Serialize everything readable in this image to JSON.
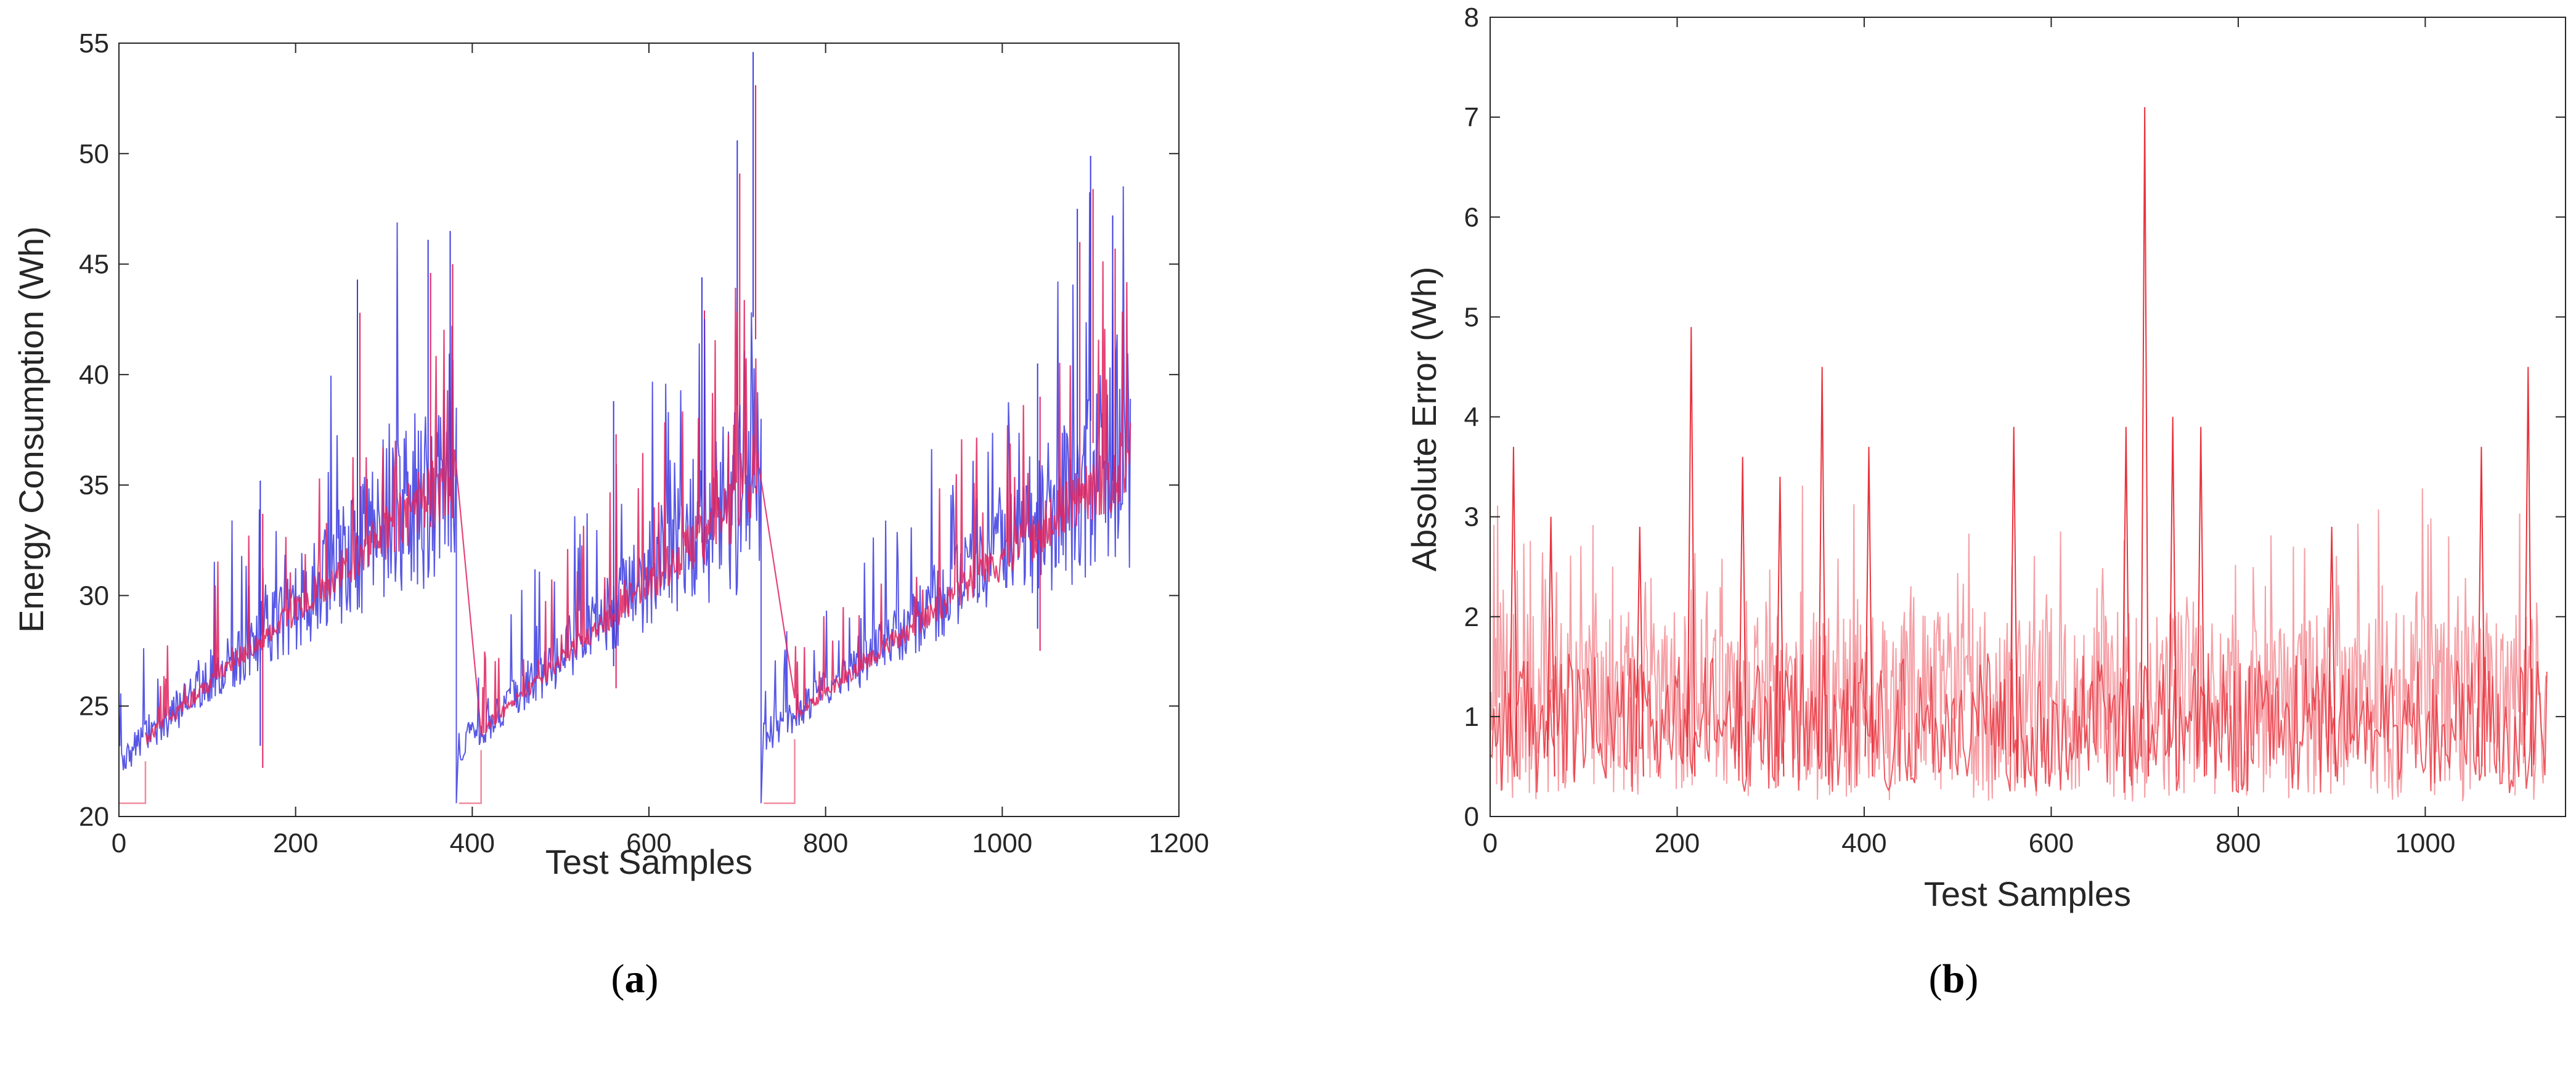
{
  "chart_data": [
    {
      "id": "a",
      "type": "line",
      "caption_letter": "a",
      "title": "",
      "xlabel": "Test Samples",
      "ylabel": "Energy Consumption (Wh)",
      "xlim": [
        0,
        1200
      ],
      "ylim": [
        20,
        55
      ],
      "xticks": [
        0,
        200,
        400,
        600,
        800,
        1000,
        1200
      ],
      "yticks": [
        20,
        25,
        30,
        35,
        40,
        45,
        50,
        55
      ],
      "colors": {
        "actual": "#3a3ae0",
        "predicted": "#e0245e",
        "predicted_light": "#f08aa0"
      },
      "segments": [
        {
          "start": 0,
          "end": 380,
          "start_level": 22.5,
          "end_level": 35.5,
          "flat_until": 30,
          "flat_value": 20.6
        },
        {
          "start": 385,
          "end": 725,
          "start_level": 23.0,
          "end_level": 35.0,
          "flat_until": 410,
          "flat_value": 20.6
        },
        {
          "start": 730,
          "end": 1145,
          "start_level": 23.5,
          "end_level": 36.0,
          "flat_until": 765,
          "flat_value": 20.6
        }
      ],
      "peaks": [
        {
          "x": 160,
          "y": 35.2
        },
        {
          "x": 270,
          "y": 44.3
        },
        {
          "x": 350,
          "y": 46.1
        },
        {
          "x": 375,
          "y": 46.5
        },
        {
          "x": 560,
          "y": 38.8
        },
        {
          "x": 660,
          "y": 44.4
        },
        {
          "x": 700,
          "y": 50.6
        },
        {
          "x": 718,
          "y": 54.6
        },
        {
          "x": 1040,
          "y": 40.5
        },
        {
          "x": 1085,
          "y": 47.5
        },
        {
          "x": 1100,
          "y": 49.9
        },
        {
          "x": 1125,
          "y": 47.2
        }
      ]
    },
    {
      "id": "b",
      "type": "line",
      "caption_letter": "b",
      "title": "",
      "xlabel": "Test Samples",
      "ylabel": "Absolute Error (Wh)",
      "xlim": [
        0,
        1150
      ],
      "ylim": [
        0,
        8
      ],
      "xticks": [
        0,
        200,
        400,
        600,
        800,
        1000
      ],
      "yticks": [
        0,
        1,
        2,
        3,
        4,
        5,
        6,
        7,
        8
      ],
      "colors": {
        "error": "#e8323c",
        "error_light": "#f5a0a6"
      },
      "mean_level": 1.1,
      "peaks": [
        {
          "x": 25,
          "y": 3.7
        },
        {
          "x": 65,
          "y": 3.0
        },
        {
          "x": 160,
          "y": 2.9
        },
        {
          "x": 215,
          "y": 4.9
        },
        {
          "x": 270,
          "y": 3.6
        },
        {
          "x": 310,
          "y": 3.4
        },
        {
          "x": 355,
          "y": 4.5
        },
        {
          "x": 405,
          "y": 3.7
        },
        {
          "x": 560,
          "y": 3.9
        },
        {
          "x": 680,
          "y": 3.9
        },
        {
          "x": 700,
          "y": 7.1
        },
        {
          "x": 730,
          "y": 4.0
        },
        {
          "x": 760,
          "y": 3.9
        },
        {
          "x": 900,
          "y": 2.9
        },
        {
          "x": 1060,
          "y": 3.7
        },
        {
          "x": 1110,
          "y": 4.5
        }
      ]
    }
  ]
}
